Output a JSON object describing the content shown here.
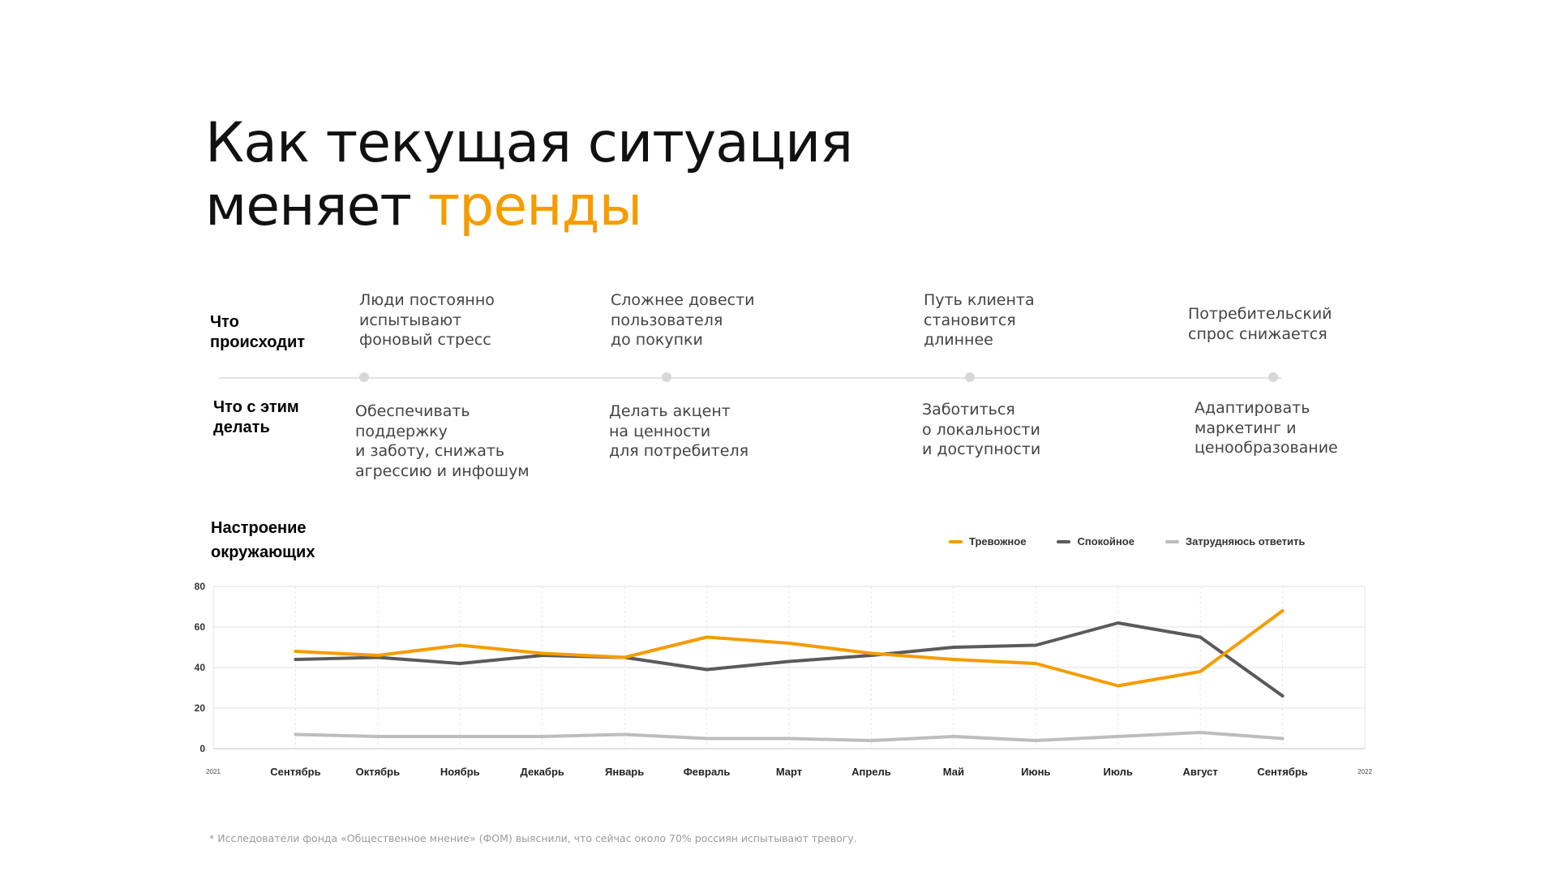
{
  "heading": {
    "line1": "Как текущая ситуация",
    "line2_plain": "меняет ",
    "line2_accent": "тренды"
  },
  "rows": {
    "what_happens": "Что\nпроисходит",
    "what_to_do": "Что с этим\nделать"
  },
  "columns": [
    {
      "happens": "Люди постоянно\nиспытывают\nфоновый стресс",
      "todo": "Обеспечивать\nподдержку\nи заботу, снижать\nагрессию и инфошум"
    },
    {
      "happens": "Сложнее довести\nпользователя\nдо покупки",
      "todo": "Делать акцент\nна ценности\nдля потребителя"
    },
    {
      "happens": "Путь клиента\nстановится\nдлиннее",
      "todo": "Заботиться\nо локальности\nи доступности"
    },
    {
      "happens": "Потребительский\nспрос снижается",
      "todo": "Адаптировать\nмаркетинг и\nценообразование"
    }
  ],
  "colors": {
    "accent": "#F59C00",
    "calm": "#5a5a5a",
    "unsure": "#bdbdbd",
    "grid": "#e6e6e6"
  },
  "chart_data": {
    "type": "line",
    "title": "Настроение\nокружающих",
    "categories": [
      "Сентябрь",
      "Октябрь",
      "Ноябрь",
      "Декабрь",
      "Январь",
      "Февраль",
      "Март",
      "Апрель",
      "Май",
      "Июнь",
      "Июль",
      "Август",
      "Сентябрь"
    ],
    "year_start": "2021",
    "year_end": "2022",
    "ylim": [
      0,
      80
    ],
    "yticks": [
      0,
      20,
      40,
      60,
      80
    ],
    "grid": true,
    "legend_position": "top-right",
    "series": [
      {
        "name": "Тревожное",
        "color": "#F59C00",
        "values": [
          48,
          46,
          51,
          47,
          45,
          55,
          52,
          47,
          44,
          42,
          31,
          38,
          68
        ]
      },
      {
        "name": "Спокойное",
        "color": "#5a5a5a",
        "values": [
          44,
          45,
          42,
          46,
          45,
          39,
          43,
          46,
          50,
          51,
          62,
          55,
          26
        ]
      },
      {
        "name": "Затрудняюсь ответить",
        "color": "#bdbdbd",
        "values": [
          7,
          6,
          6,
          6,
          7,
          5,
          5,
          4,
          6,
          4,
          6,
          8,
          5
        ]
      }
    ]
  },
  "footnote": "* Исследователи фонда «Общественное мнение» (ФОМ) выяснили, что сейчас около 70% россиян испытывают тревогу."
}
